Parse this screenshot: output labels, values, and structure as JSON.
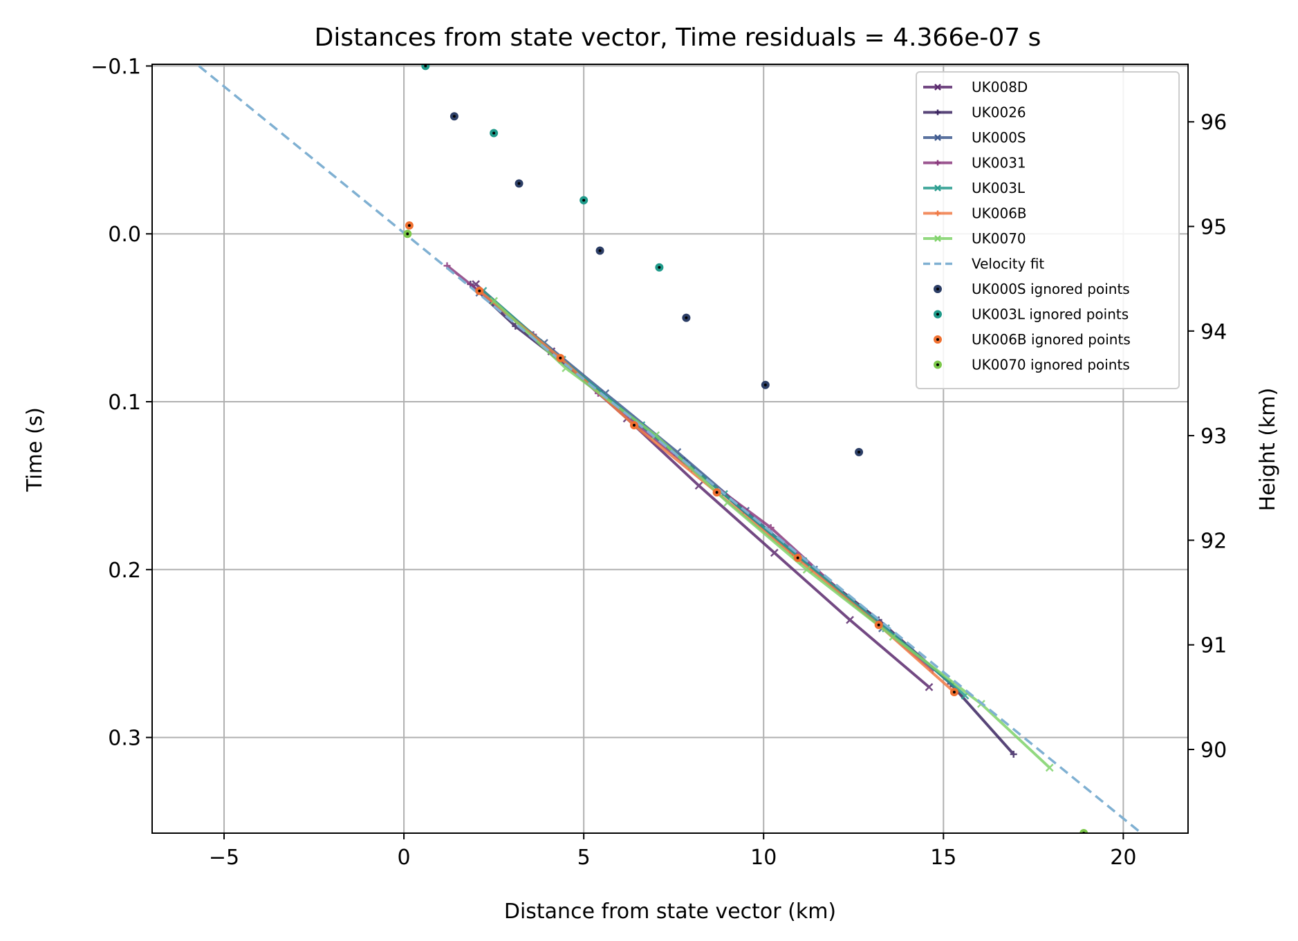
{
  "chart_data": {
    "type": "line",
    "title": "Distances from state vector, Time residuals = 4.366e-07 s",
    "xlabel": "Distance from state vector (km)",
    "ylabel": "Time (s)",
    "y2label": "Height (km)",
    "xlim": [
      -7,
      21.8
    ],
    "ylim": [
      0.357,
      -0.101
    ],
    "y_inverted": true,
    "y2lim": [
      89.2,
      96.55
    ],
    "grid": true,
    "legend_position": "top-right",
    "x_ticks": [
      "−5",
      "0",
      "5",
      "10",
      "15",
      "20"
    ],
    "x_tick_values": [
      -5,
      0,
      5,
      10,
      15,
      20
    ],
    "y_ticks": [
      "−0.1",
      "0.0",
      "0.1",
      "0.2",
      "0.3"
    ],
    "y_tick_values": [
      -0.1,
      0.0,
      0.1,
      0.2,
      0.3
    ],
    "y2_ticks": [
      "90",
      "91",
      "92",
      "93",
      "94",
      "95",
      "96"
    ],
    "y2_tick_values": [
      90,
      91,
      92,
      93,
      94,
      95,
      96
    ],
    "series": [
      {
        "name": "UK008D",
        "kind": "line",
        "color": "#5b2a6e",
        "marker": "x",
        "x": [
          2.0,
          4.1,
          6.2,
          8.2,
          10.3,
          12.4,
          14.6
        ],
        "y": [
          0.03,
          0.07,
          0.11,
          0.15,
          0.19,
          0.23,
          0.27
        ]
      },
      {
        "name": "UK0026",
        "kind": "line",
        "color": "#3b2561",
        "marker": "+",
        "x": [
          1.85,
          3.1,
          5.5,
          7.8,
          10.8,
          13.2,
          15.2,
          16.95
        ],
        "y": [
          0.03,
          0.055,
          0.095,
          0.135,
          0.19,
          0.23,
          0.268,
          0.31
        ]
      },
      {
        "name": "UK000S",
        "kind": "line",
        "color": "#3e5a8f",
        "marker": "x",
        "x": [
          2.1,
          3.9,
          5.6,
          7.6,
          9.5,
          11.4,
          13.3
        ],
        "y": [
          0.035,
          0.065,
          0.095,
          0.13,
          0.165,
          0.2,
          0.235
        ]
      },
      {
        "name": "UK0031",
        "kind": "line",
        "color": "#8b3a7e",
        "marker": "+",
        "x": [
          1.2,
          3.6,
          5.4,
          8.0,
          10.2,
          12.5,
          14.7
        ],
        "y": [
          0.019,
          0.06,
          0.095,
          0.14,
          0.175,
          0.22,
          0.26
        ]
      },
      {
        "name": "UK003L",
        "kind": "line",
        "color": "#2a9d8f",
        "marker": "x",
        "x": [
          2.2,
          4.4,
          6.6,
          8.9,
          11.1,
          13.4,
          15.6
        ],
        "y": [
          0.034,
          0.075,
          0.114,
          0.155,
          0.195,
          0.235,
          0.275
        ]
      },
      {
        "name": "UK006B",
        "kind": "line",
        "color": "#f07a45",
        "marker": "+",
        "x": [
          2.1,
          4.35,
          6.4,
          8.7,
          10.9,
          13.2,
          15.3
        ],
        "y": [
          0.034,
          0.074,
          0.114,
          0.154,
          0.193,
          0.233,
          0.273
        ]
      },
      {
        "name": "UK0070",
        "kind": "line",
        "color": "#7fd36a",
        "marker": "x",
        "x": [
          2.5,
          4.5,
          7.0,
          9.0,
          11.2,
          13.6,
          16.05,
          17.95
        ],
        "y": [
          0.04,
          0.08,
          0.12,
          0.16,
          0.2,
          0.24,
          0.28,
          0.318
        ]
      },
      {
        "name": "Velocity fit",
        "kind": "dashed",
        "color": "#7fb0d2",
        "x": [
          -5.7,
          20.5
        ],
        "y": [
          -0.1,
          0.357
        ]
      },
      {
        "name": "UK000S ignored points",
        "kind": "scatter",
        "color": "#2c3e66",
        "x": [
          1.4,
          3.2,
          5.45,
          7.85,
          10.05,
          12.65
        ],
        "y": [
          -0.07,
          -0.03,
          0.01,
          0.05,
          0.09,
          0.13
        ]
      },
      {
        "name": "UK003L ignored points",
        "kind": "scatter",
        "color": "#1f9a8a",
        "x": [
          0.6,
          2.5,
          5.0,
          7.1
        ],
        "y": [
          -0.1,
          -0.06,
          -0.02,
          0.02
        ]
      },
      {
        "name": "UK006B ignored points",
        "kind": "scatter",
        "color": "#f07030",
        "x": [
          0.15,
          2.1,
          4.35,
          6.4,
          8.7,
          10.95,
          13.2,
          15.3
        ],
        "y": [
          -0.005,
          0.034,
          0.074,
          0.114,
          0.154,
          0.193,
          0.233,
          0.273
        ]
      },
      {
        "name": "UK0070 ignored points",
        "kind": "scatter",
        "color": "#7cc84a",
        "x": [
          0.1,
          18.9
        ],
        "y": [
          0.0,
          0.357
        ]
      }
    ]
  }
}
